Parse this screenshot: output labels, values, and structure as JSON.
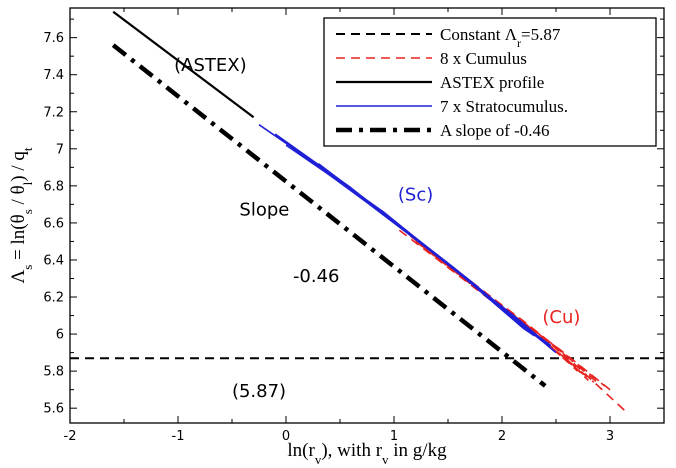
{
  "chart_data": {
    "type": "line",
    "title": "",
    "xlabel": {
      "main": "ln(r",
      "sub": "v",
      "after": "), with r",
      "sub2": "v",
      "tail": " in g/kg"
    },
    "ylabel": {
      "lead": "Λ",
      "sub": "s",
      "mid": " = ln(θ",
      "sub2": "s",
      "mid2": " / θ",
      "sub3": "l",
      "mid3": ") / q",
      "sub4": "t"
    },
    "xlim": [
      -2,
      3.5
    ],
    "ylim": [
      5.52,
      7.76
    ],
    "xticks": [
      -2,
      -1,
      0,
      1,
      2,
      3
    ],
    "xtick_labels": [
      "-2",
      "-1",
      "0",
      "1",
      "2",
      "3"
    ],
    "yticks": [
      5.6,
      5.8,
      6.0,
      6.2,
      6.4,
      6.6,
      6.8,
      7.0,
      7.2,
      7.4,
      7.6
    ],
    "ytick_labels": [
      "5.6",
      "5.8",
      "6",
      "6.2",
      "6.4",
      "6.6",
      "6.8",
      "7",
      "7.2",
      "7.4",
      "7.6"
    ],
    "legend_position": "top-right",
    "series": [
      {
        "name": "Constant Λ_r=5.87",
        "legend_label": {
          "main": "Constant Λ",
          "sub": "r",
          "after": "=5.87"
        },
        "color": "#000000",
        "style": "dashed",
        "points": [
          [
            -2.0,
            5.87
          ],
          [
            3.5,
            5.87
          ]
        ]
      },
      {
        "name": "8 x Cumulus",
        "legend_label": {
          "main": "8 x Cumulus",
          "sub": "",
          "after": ""
        },
        "color": "#e8231f",
        "style": "dashed",
        "bundle": [
          [
            [
              1.05,
              6.56
            ],
            [
              1.7,
              6.27
            ],
            [
              2.3,
              6.0
            ],
            [
              2.8,
              5.76
            ]
          ],
          [
            [
              1.2,
              6.5
            ],
            [
              1.8,
              6.23
            ],
            [
              2.4,
              5.96
            ],
            [
              2.85,
              5.74
            ]
          ],
          [
            [
              1.35,
              6.44
            ],
            [
              1.95,
              6.17
            ],
            [
              2.5,
              5.93
            ],
            [
              3.15,
              5.58
            ]
          ],
          [
            [
              1.5,
              6.38
            ],
            [
              2.1,
              6.11
            ],
            [
              2.6,
              5.88
            ],
            [
              2.9,
              5.73
            ]
          ],
          [
            [
              1.15,
              6.53
            ],
            [
              1.75,
              6.26
            ],
            [
              2.25,
              6.04
            ],
            [
              2.7,
              5.8
            ]
          ],
          [
            [
              1.6,
              6.33
            ],
            [
              2.2,
              6.07
            ],
            [
              2.65,
              5.86
            ],
            [
              2.95,
              5.72
            ]
          ],
          [
            [
              1.25,
              6.48
            ],
            [
              1.9,
              6.19
            ],
            [
              2.45,
              5.95
            ],
            [
              2.8,
              5.75
            ]
          ],
          [
            [
              1.4,
              6.42
            ],
            [
              2.0,
              6.15
            ],
            [
              2.55,
              5.91
            ],
            [
              3.0,
              5.7
            ]
          ]
        ]
      },
      {
        "name": "ASTEX profile",
        "legend_label": {
          "main": "ASTEX profile",
          "sub": "",
          "after": ""
        },
        "color": "#000000",
        "style": "solid",
        "points": [
          [
            -1.6,
            7.74
          ],
          [
            -0.3,
            7.17
          ]
        ]
      },
      {
        "name": "7 x Stratocumulus.",
        "legend_label": {
          "main": "7 x Stratocumulus.",
          "sub": "",
          "after": ""
        },
        "color": "#1f1fd6",
        "style": "solid",
        "bundle": [
          [
            [
              -0.25,
              7.13
            ],
            [
              0.5,
              6.83
            ],
            [
              1.3,
              6.47
            ],
            [
              2.05,
              6.12
            ],
            [
              2.5,
              5.9
            ]
          ],
          [
            [
              -0.1,
              7.08
            ],
            [
              0.6,
              6.79
            ],
            [
              1.4,
              6.42
            ],
            [
              2.15,
              6.08
            ],
            [
              2.45,
              5.93
            ]
          ],
          [
            [
              0.0,
              7.02
            ],
            [
              0.7,
              6.74
            ],
            [
              1.5,
              6.38
            ],
            [
              2.2,
              6.04
            ],
            [
              2.4,
              5.95
            ]
          ],
          [
            [
              0.1,
              6.99
            ],
            [
              0.8,
              6.7
            ],
            [
              1.55,
              6.36
            ],
            [
              2.25,
              6.02
            ],
            [
              2.35,
              5.98
            ]
          ],
          [
            [
              0.2,
              6.95
            ],
            [
              0.9,
              6.66
            ],
            [
              1.6,
              6.33
            ],
            [
              2.2,
              6.03
            ],
            [
              2.3,
              5.99
            ]
          ],
          [
            [
              0.05,
              7.01
            ],
            [
              0.75,
              6.71
            ],
            [
              1.45,
              6.4
            ],
            [
              2.1,
              6.09
            ],
            [
              2.4,
              5.96
            ]
          ],
          [
            [
              0.3,
              6.92
            ],
            [
              1.0,
              6.61
            ],
            [
              1.7,
              6.29
            ],
            [
              2.3,
              6.0
            ],
            [
              2.45,
              5.94
            ]
          ]
        ]
      },
      {
        "name": "A slope of -0.46",
        "legend_label": {
          "main": "A slope of -0.46",
          "sub": "",
          "after": ""
        },
        "color": "#000000",
        "style": "dashdot",
        "points": [
          [
            -1.6,
            7.56
          ],
          [
            2.4,
            5.72
          ]
        ]
      }
    ],
    "annotations": [
      {
        "text": "(ASTEX)",
        "x": -0.7,
        "y": 7.42,
        "color": "#000000"
      },
      {
        "text": "(Sc)",
        "x": 1.2,
        "y": 6.72,
        "color": "#1f1fd6"
      },
      {
        "text": "(Cu)",
        "x": 2.55,
        "y": 6.06,
        "color": "#e8231f"
      },
      {
        "text": "Slope",
        "x": -0.2,
        "y": 6.64,
        "color": "#000000"
      },
      {
        "text": "-0.46",
        "x": 0.28,
        "y": 6.28,
        "color": "#000000"
      },
      {
        "text": "(5.87)",
        "x": -0.25,
        "y": 5.66,
        "color": "#000000"
      }
    ]
  }
}
